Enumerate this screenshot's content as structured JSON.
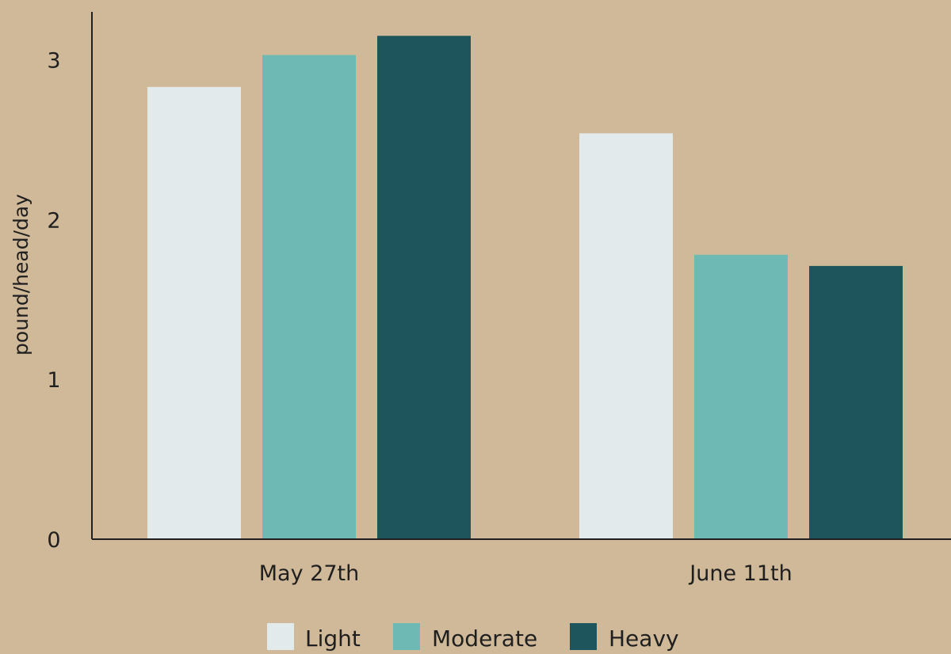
{
  "chart_data": {
    "type": "bar",
    "title": "",
    "xlabel": "",
    "ylabel": "pound/head/day",
    "categories": [
      "May 27th",
      "June 11th"
    ],
    "series": [
      {
        "name": "Light",
        "values": [
          2.83,
          2.54
        ],
        "color": "#e2eaeb"
      },
      {
        "name": "Moderate",
        "values": [
          3.03,
          1.78
        ],
        "color": "#6fb9b5"
      },
      {
        "name": "Heavy",
        "values": [
          3.15,
          1.71
        ],
        "color": "#1e555d"
      }
    ],
    "ylim": [
      0,
      3.3
    ],
    "yticks": [
      "0",
      "1",
      "2",
      "3"
    ],
    "grid": false,
    "legend": "bottom-center",
    "background": "#d0b998",
    "axis_color": "#1f1f1f"
  }
}
